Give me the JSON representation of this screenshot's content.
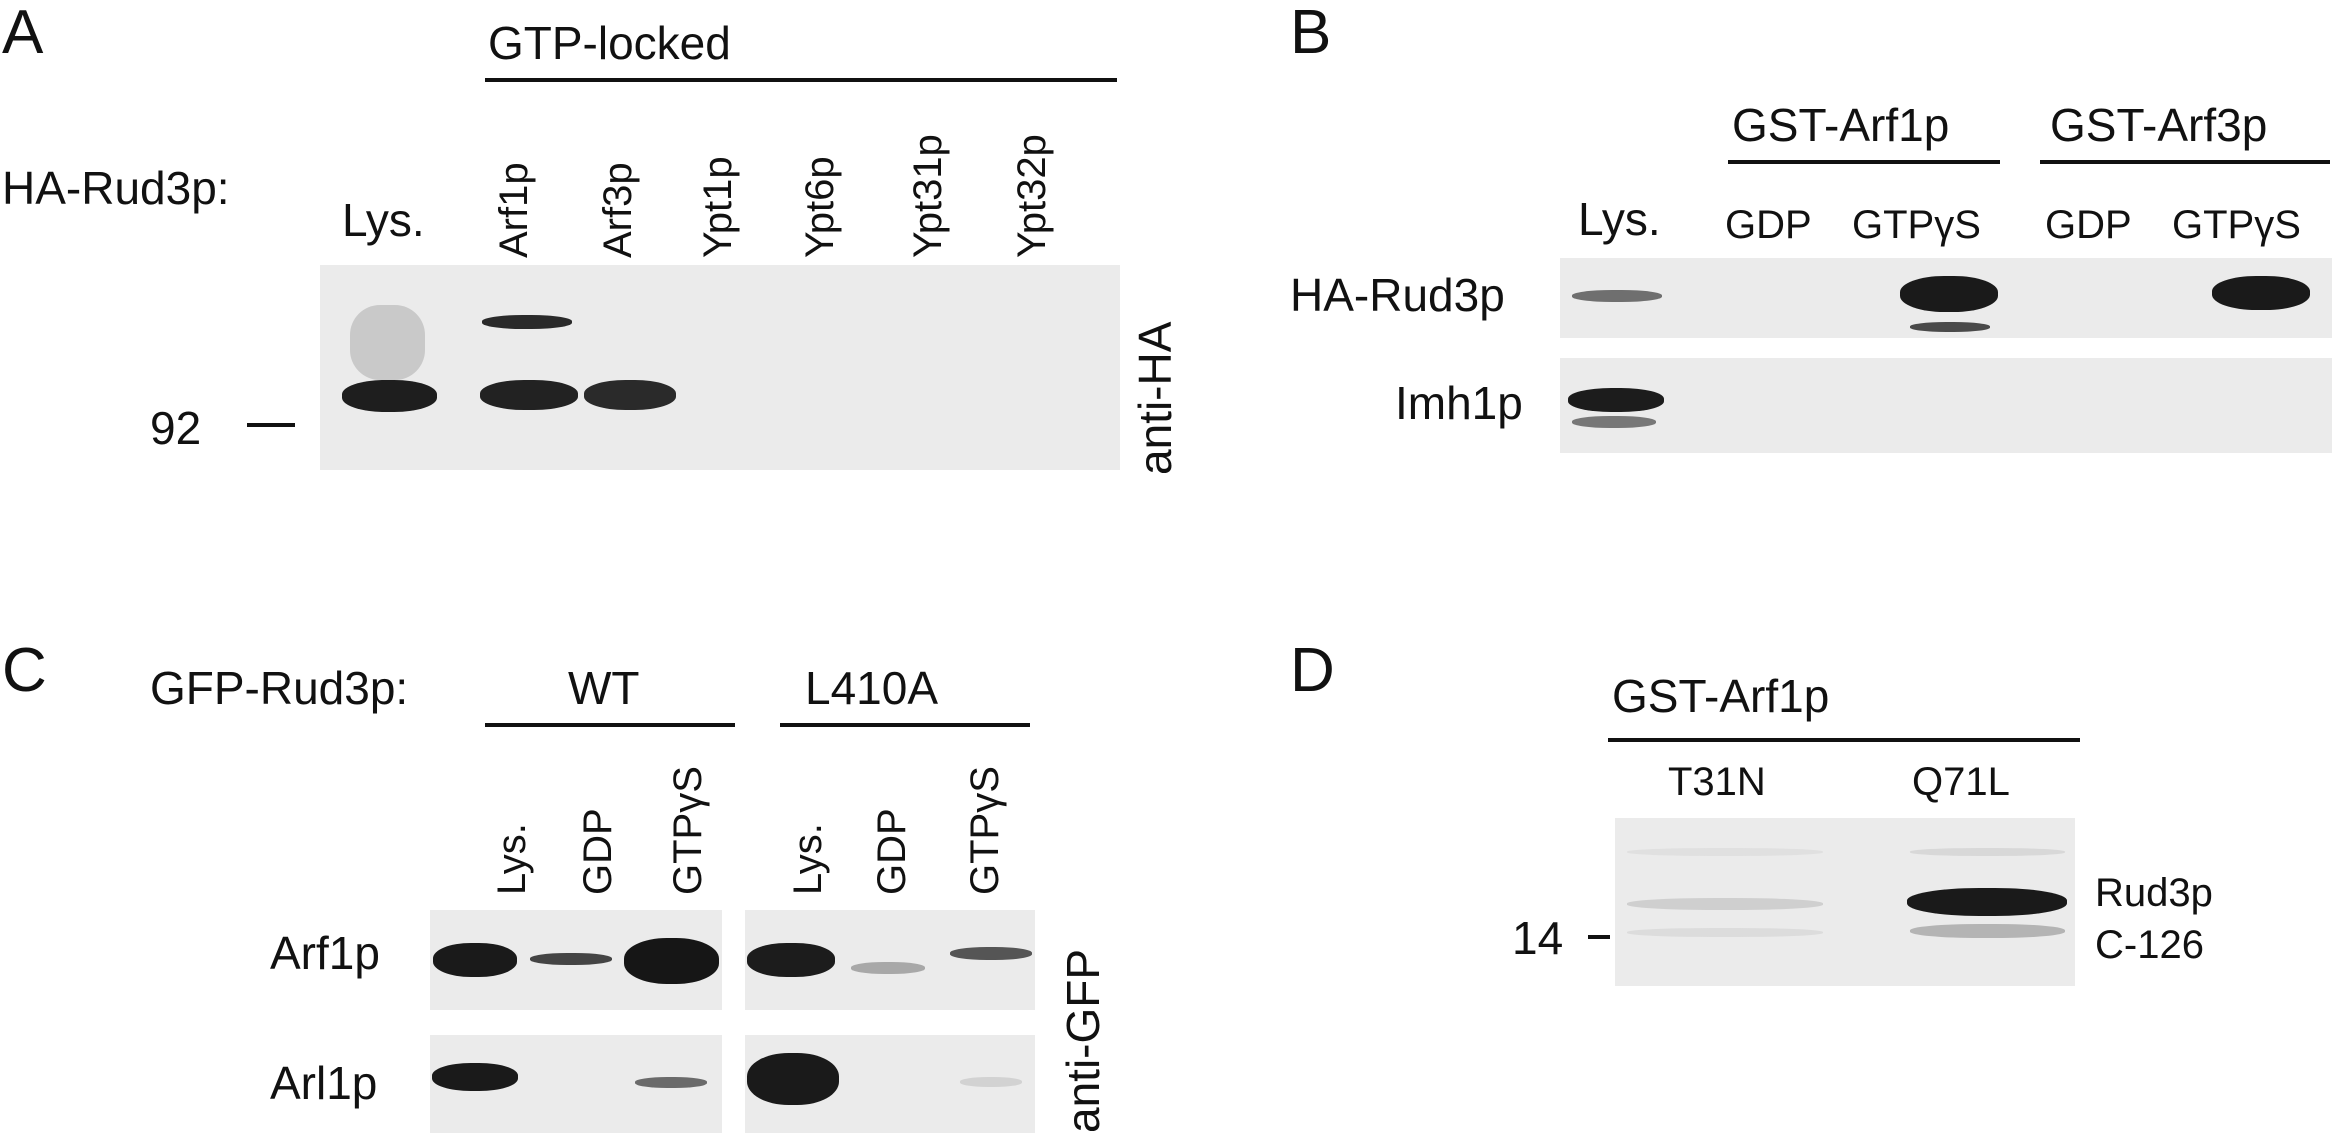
{
  "panel_A": {
    "letter": "A",
    "row_label": "HA-Rud3p:",
    "group_label": "GTP-locked",
    "lanes": [
      "Lys.",
      "Arf1p",
      "Arf3p",
      "Ypt1p",
      "Ypt6p",
      "Ypt31p",
      "Ypt32p"
    ],
    "marker": "92",
    "antibody": "anti-HA"
  },
  "panel_B": {
    "letter": "B",
    "groups": [
      "GST-Arf1p",
      "GST-Arf3p"
    ],
    "lanes": [
      "Lys.",
      "GDP",
      "GTPγS",
      "GDP",
      "GTPγS"
    ],
    "rows": [
      "HA-Rud3p",
      "Imh1p"
    ]
  },
  "panel_C": {
    "letter": "C",
    "row_label": "GFP-Rud3p:",
    "groups": [
      "WT",
      "L410A"
    ],
    "lanes": [
      "Lys.",
      "GDP",
      "GTPγS",
      "Lys.",
      "GDP",
      "GTPγS"
    ],
    "rows": [
      "Arf1p",
      "Arl1p"
    ],
    "antibody": "anti-GFP"
  },
  "panel_D": {
    "letter": "D",
    "group_label": "GST-Arf1p",
    "lanes": [
      "T31N",
      "Q71L"
    ],
    "marker": "14",
    "band_label_1": "Rud3p",
    "band_label_2": "C-126"
  }
}
